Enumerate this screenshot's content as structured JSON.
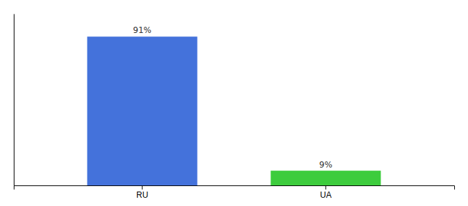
{
  "chart_data": {
    "type": "bar",
    "categories": [
      "RU",
      "UA"
    ],
    "values": [
      91,
      9
    ],
    "value_labels": [
      "91%",
      "9%"
    ],
    "colors": [
      "#4472db",
      "#3dcc3d"
    ],
    "data_labels": true,
    "ylim": [
      0,
      105
    ],
    "tick_labels": "x"
  }
}
